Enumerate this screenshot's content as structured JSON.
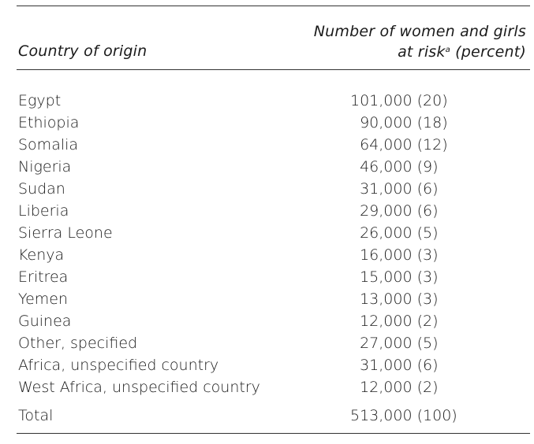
{
  "table": {
    "header": {
      "country_col": "Country of origin",
      "number_col_line1": "Number of women and girls",
      "number_col_line2_pre": "at risk",
      "number_col_footnote": "a",
      "number_col_line2_post": " (percent)"
    },
    "rows": [
      {
        "country": "Egypt",
        "value": "101,000 (20)"
      },
      {
        "country": "Ethiopia",
        "value": "  90,000 (18)"
      },
      {
        "country": "Somalia",
        "value": "  64,000 (12)"
      },
      {
        "country": "Nigeria",
        "value": "  46,000 (9)"
      },
      {
        "country": "Sudan",
        "value": "  31,000 (6)"
      },
      {
        "country": "Liberia",
        "value": "  29,000 (6)"
      },
      {
        "country": "Sierra Leone",
        "value": "  26,000 (5)"
      },
      {
        "country": "Kenya",
        "value": "  16,000 (3)"
      },
      {
        "country": "Eritrea",
        "value": "  15,000 (3)"
      },
      {
        "country": "Yemen",
        "value": "  13,000 (3)"
      },
      {
        "country": "Guinea",
        "value": "  12,000 (2)"
      },
      {
        "country": "Other, specified",
        "value": "  27,000 (5)"
      },
      {
        "country": "Africa, unspecified country",
        "value": "  31,000 (6)"
      },
      {
        "country": "West Africa, unspecified country",
        "value": "  12,000 (2)"
      }
    ],
    "total": {
      "country": "Total",
      "value": "513,000 (100)"
    }
  }
}
